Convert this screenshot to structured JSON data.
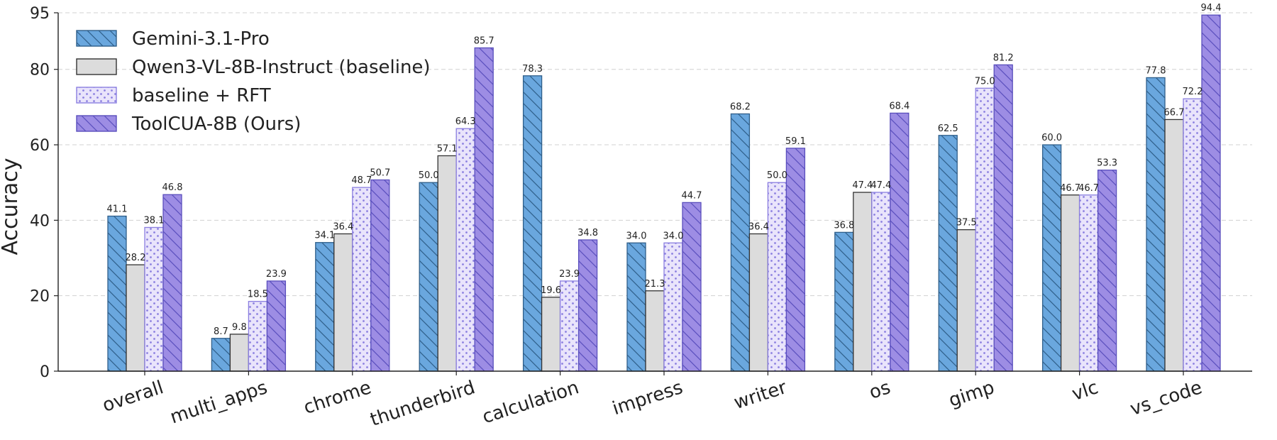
{
  "chart_data": {
    "type": "bar",
    "ylabel": "Accuracy",
    "xlabel": "",
    "ylim": [
      0,
      95
    ],
    "yticks": [
      0,
      20,
      40,
      60,
      80,
      95
    ],
    "grid": "horizontal dashed",
    "legend_position": "top-left",
    "categories": [
      "overall",
      "multi_apps",
      "chrome",
      "thunderbird",
      "calculation",
      "impress",
      "writer",
      "os",
      "gimp",
      "vlc",
      "vs_code"
    ],
    "series": [
      {
        "name": "Gemini-3.1-Pro",
        "values": [
          41.1,
          8.7,
          34.1,
          50.0,
          78.3,
          34.0,
          68.2,
          36.8,
          62.5,
          60.0,
          77.8
        ],
        "color": "#6aa7de",
        "stroke": "#2f5f8a",
        "pattern": "diagonal-hatch"
      },
      {
        "name": "Qwen3-VL-8B-Instruct (baseline)",
        "values": [
          28.2,
          9.8,
          36.4,
          57.1,
          19.6,
          21.3,
          36.4,
          47.4,
          37.5,
          46.7,
          66.7
        ],
        "color": "#dcdcdc",
        "stroke": "#333333",
        "pattern": "solid"
      },
      {
        "name": "baseline + RFT",
        "values": [
          38.1,
          18.5,
          48.7,
          64.3,
          23.9,
          34.0,
          50.0,
          47.4,
          75.0,
          46.7,
          72.2
        ],
        "color": "#e9e4fb",
        "stroke": "#8b7fe0",
        "pattern": "dots"
      },
      {
        "name": "ToolCUA-8B (Ours)",
        "values": [
          46.8,
          23.9,
          50.7,
          85.7,
          34.8,
          44.7,
          59.1,
          68.4,
          81.2,
          53.3,
          94.4
        ],
        "color": "#9d8de4",
        "stroke": "#5a4fbd",
        "pattern": "diagonal-hatch"
      }
    ]
  }
}
